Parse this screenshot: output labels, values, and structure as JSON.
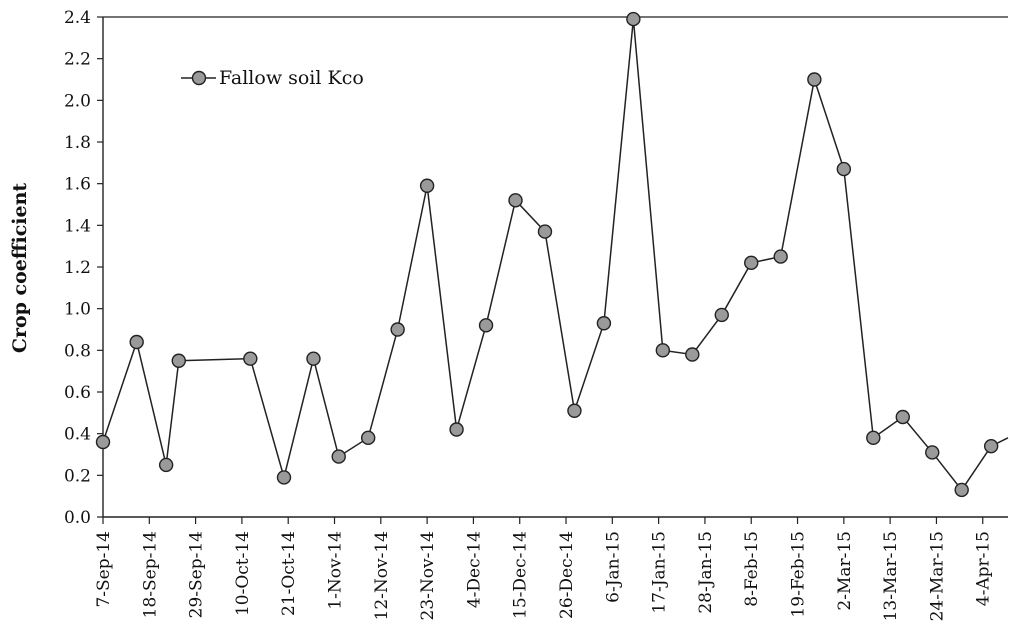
{
  "chart_data": {
    "type": "line",
    "ylabel": "Crop coefficient",
    "ylim": [
      0.0,
      2.4
    ],
    "yticks": [
      "0.0",
      "0.2",
      "0.4",
      "0.6",
      "0.8",
      "1.0",
      "1.2",
      "1.4",
      "1.6",
      "1.8",
      "2.0",
      "2.2",
      "2.4"
    ],
    "xlim": [
      "2014-09-07",
      "2015-04-10"
    ],
    "xticks": [
      {
        "date": "2014-09-07",
        "label": "7-Sep-14"
      },
      {
        "date": "2014-09-18",
        "label": "18-Sep-14"
      },
      {
        "date": "2014-09-29",
        "label": "29-Sep-14"
      },
      {
        "date": "2014-10-10",
        "label": "10-Oct-14"
      },
      {
        "date": "2014-10-21",
        "label": "21-Oct-14"
      },
      {
        "date": "2014-11-01",
        "label": "1-Nov-14"
      },
      {
        "date": "2014-11-12",
        "label": "12-Nov-14"
      },
      {
        "date": "2014-11-23",
        "label": "23-Nov-14"
      },
      {
        "date": "2014-12-04",
        "label": "4-Dec-14"
      },
      {
        "date": "2014-12-15",
        "label": "15-Dec-14"
      },
      {
        "date": "2014-12-26",
        "label": "26-Dec-14"
      },
      {
        "date": "2015-01-06",
        "label": "6-Jan-15"
      },
      {
        "date": "2015-01-17",
        "label": "17-Jan-15"
      },
      {
        "date": "2015-01-28",
        "label": "28-Jan-15"
      },
      {
        "date": "2015-02-08",
        "label": "8-Feb-15"
      },
      {
        "date": "2015-02-19",
        "label": "19-Feb-15"
      },
      {
        "date": "2015-03-02",
        "label": "2-Mar-15"
      },
      {
        "date": "2015-03-13",
        "label": "13-Mar-15"
      },
      {
        "date": "2015-03-24",
        "label": "24-Mar-15"
      },
      {
        "date": "2015-04-04",
        "label": "4-Apr-15"
      }
    ],
    "legend": {
      "position": "top-left"
    },
    "series": [
      {
        "name": "Fallow soil Kco",
        "color": "#222222",
        "marker_color": "#9a9a9a",
        "points": [
          {
            "x": "2014-09-07",
            "y": 0.36
          },
          {
            "x": "2014-09-15",
            "y": 0.84
          },
          {
            "x": "2014-09-22",
            "y": 0.25
          },
          {
            "x": "2014-09-25",
            "y": 0.75
          },
          {
            "x": "2014-10-12",
            "y": 0.76
          },
          {
            "x": "2014-10-20",
            "y": 0.19
          },
          {
            "x": "2014-10-27",
            "y": 0.76
          },
          {
            "x": "2014-11-02",
            "y": 0.29
          },
          {
            "x": "2014-11-09",
            "y": 0.38
          },
          {
            "x": "2014-11-16",
            "y": 0.9
          },
          {
            "x": "2014-11-23",
            "y": 1.59
          },
          {
            "x": "2014-11-30",
            "y": 0.42
          },
          {
            "x": "2014-12-07",
            "y": 0.92
          },
          {
            "x": "2014-12-14",
            "y": 1.52
          },
          {
            "x": "2014-12-21",
            "y": 1.37
          },
          {
            "x": "2014-12-28",
            "y": 0.51
          },
          {
            "x": "2015-01-04",
            "y": 0.93
          },
          {
            "x": "2015-01-11",
            "y": 2.39
          },
          {
            "x": "2015-01-18",
            "y": 0.8
          },
          {
            "x": "2015-01-25",
            "y": 0.78
          },
          {
            "x": "2015-02-01",
            "y": 0.97
          },
          {
            "x": "2015-02-08",
            "y": 1.22
          },
          {
            "x": "2015-02-15",
            "y": 1.25
          },
          {
            "x": "2015-02-23",
            "y": 2.1
          },
          {
            "x": "2015-03-02",
            "y": 1.67
          },
          {
            "x": "2015-03-09",
            "y": 0.38
          },
          {
            "x": "2015-03-16",
            "y": 0.48
          },
          {
            "x": "2015-03-23",
            "y": 0.31
          },
          {
            "x": "2015-03-30",
            "y": 0.13
          },
          {
            "x": "2015-04-06",
            "y": 0.34
          },
          {
            "x": "2015-04-10",
            "y": 0.38
          }
        ]
      }
    ]
  }
}
